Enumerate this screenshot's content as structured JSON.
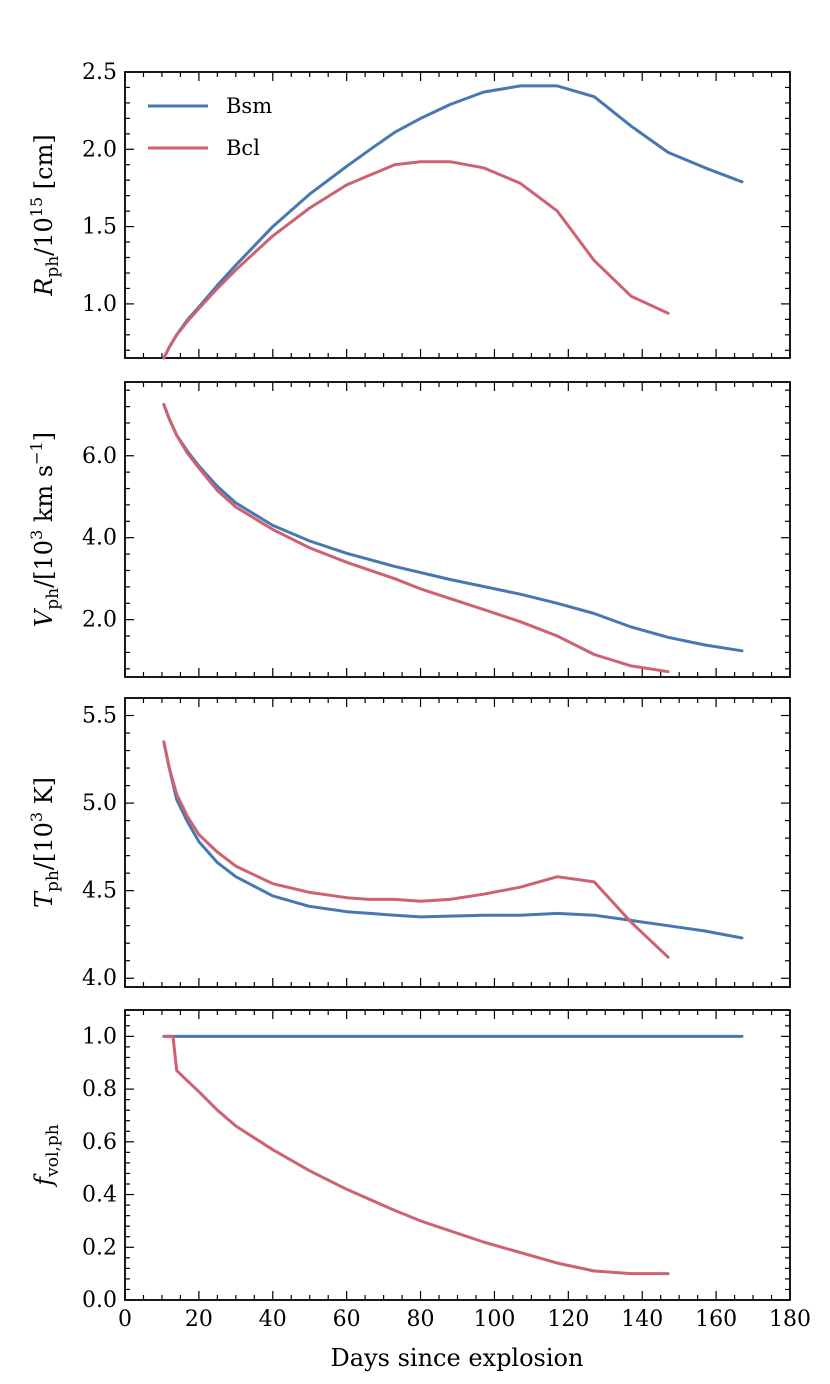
{
  "figure": {
    "xlabel": "Days since explosion",
    "xlim": [
      0,
      180
    ],
    "xticks": [
      0,
      20,
      40,
      60,
      80,
      100,
      120,
      140,
      160,
      180
    ],
    "xtick_labels": [
      "0",
      "20",
      "40",
      "60",
      "80",
      "100",
      "120",
      "140",
      "160",
      "180"
    ],
    "colors": {
      "Bsm": "#4878b0",
      "Bcl": "#cc6272"
    }
  },
  "legend": {
    "placement": "top-left",
    "entries": [
      {
        "name": "Bsm",
        "color": "#4878b0"
      },
      {
        "name": "Bcl",
        "color": "#cc6272"
      }
    ]
  },
  "chart_data": [
    {
      "type": "line",
      "id": "radius",
      "ylabel": {
        "sym": "R",
        "sub": "ph",
        "rest": "/10",
        "sup": "15",
        "unit": " [cm]"
      },
      "ylim": [
        0.65,
        2.5
      ],
      "yticks": [
        1.0,
        1.5,
        2.0,
        2.5
      ],
      "ytick_labels": [
        "1.0",
        "1.5",
        "2.0",
        "2.5"
      ],
      "series": [
        {
          "name": "Bsm",
          "x": [
            10.5,
            12,
            14,
            17,
            20,
            25,
            30,
            40,
            50,
            60,
            67,
            73,
            80,
            88,
            97,
            107,
            117,
            127,
            137,
            147,
            157,
            167
          ],
          "y": [
            0.65,
            0.72,
            0.8,
            0.9,
            0.98,
            1.12,
            1.25,
            1.5,
            1.71,
            1.89,
            2.01,
            2.11,
            2.2,
            2.29,
            2.37,
            2.41,
            2.41,
            2.34,
            2.15,
            1.98,
            1.88,
            1.79
          ]
        },
        {
          "name": "Bcl",
          "x": [
            10.5,
            12,
            14,
            17,
            20,
            25,
            30,
            40,
            50,
            60,
            67,
            73,
            80,
            88,
            97,
            107,
            117,
            127,
            137,
            147
          ],
          "y": [
            0.65,
            0.72,
            0.8,
            0.89,
            0.97,
            1.1,
            1.22,
            1.44,
            1.62,
            1.77,
            1.84,
            1.9,
            1.92,
            1.92,
            1.88,
            1.78,
            1.6,
            1.28,
            1.05,
            0.94
          ]
        }
      ]
    },
    {
      "type": "line",
      "id": "velocity",
      "ylabel": {
        "sym": "V",
        "sub": "ph",
        "rest": "/[10",
        "sup": "3",
        "unit": " km s",
        "sup2": "−1",
        "close": "]"
      },
      "ylim": [
        0.6,
        7.8
      ],
      "yticks": [
        2.0,
        4.0,
        6.0
      ],
      "ytick_labels": [
        "2.0",
        "4.0",
        "6.0"
      ],
      "series": [
        {
          "name": "Bsm",
          "x": [
            10.5,
            12,
            14,
            17,
            20,
            25,
            30,
            40,
            50,
            60,
            73,
            88,
            107,
            117,
            127,
            137,
            147,
            157,
            167
          ],
          "y": [
            7.25,
            6.9,
            6.5,
            6.1,
            5.75,
            5.25,
            4.85,
            4.3,
            3.92,
            3.62,
            3.3,
            2.98,
            2.62,
            2.4,
            2.15,
            1.82,
            1.57,
            1.38,
            1.24
          ]
        },
        {
          "name": "Bcl",
          "x": [
            10.5,
            12,
            14,
            17,
            20,
            25,
            30,
            40,
            50,
            60,
            73,
            80,
            97,
            107,
            117,
            127,
            137,
            147
          ],
          "y": [
            7.25,
            6.9,
            6.5,
            6.05,
            5.7,
            5.15,
            4.75,
            4.2,
            3.75,
            3.4,
            3.0,
            2.75,
            2.25,
            1.95,
            1.6,
            1.15,
            0.87,
            0.73
          ]
        }
      ]
    },
    {
      "type": "line",
      "id": "temperature",
      "ylabel": {
        "sym": "T",
        "sub": "ph",
        "rest": "/[10",
        "sup": "3",
        "unit": " K]"
      },
      "ylim": [
        3.95,
        5.6
      ],
      "yticks": [
        4.0,
        4.5,
        5.0,
        5.5
      ],
      "ytick_labels": [
        "4.0",
        "4.5",
        "5.0",
        "5.5"
      ],
      "series": [
        {
          "name": "Bsm",
          "x": [
            10.5,
            12,
            14,
            17,
            20,
            25,
            30,
            40,
            50,
            60,
            73,
            80,
            97,
            107,
            117,
            127,
            137,
            147,
            157,
            167
          ],
          "y": [
            5.35,
            5.2,
            5.02,
            4.89,
            4.78,
            4.66,
            4.58,
            4.47,
            4.41,
            4.38,
            4.36,
            4.35,
            4.36,
            4.36,
            4.37,
            4.36,
            4.33,
            4.3,
            4.27,
            4.23
          ]
        },
        {
          "name": "Bcl",
          "x": [
            10.5,
            12,
            14,
            17,
            20,
            25,
            30,
            40,
            50,
            60,
            66,
            73,
            80,
            88,
            97,
            107,
            117,
            127,
            137,
            147
          ],
          "y": [
            5.35,
            5.2,
            5.05,
            4.92,
            4.82,
            4.72,
            4.64,
            4.54,
            4.49,
            4.46,
            4.45,
            4.45,
            4.44,
            4.45,
            4.48,
            4.52,
            4.58,
            4.55,
            4.32,
            4.12
          ]
        }
      ]
    },
    {
      "type": "line",
      "id": "volume-filling",
      "ylabel": {
        "sym": "f",
        "sub": "vol,ph"
      },
      "ylim": [
        0.0,
        1.1
      ],
      "yticks": [
        0.0,
        0.2,
        0.4,
        0.6,
        0.8,
        1.0
      ],
      "ytick_labels": [
        "0.0",
        "0.2",
        "0.4",
        "0.6",
        "0.8",
        "1.0"
      ],
      "series": [
        {
          "name": "Bsm",
          "x": [
            10.5,
            167
          ],
          "y": [
            1.0,
            1.0
          ]
        },
        {
          "name": "Bcl",
          "x": [
            10.5,
            13,
            14,
            17,
            20,
            25,
            30,
            40,
            50,
            60,
            73,
            80,
            97,
            107,
            117,
            127,
            137,
            147
          ],
          "y": [
            1.0,
            1.0,
            0.87,
            0.83,
            0.79,
            0.72,
            0.66,
            0.57,
            0.49,
            0.42,
            0.34,
            0.3,
            0.22,
            0.18,
            0.14,
            0.11,
            0.1,
            0.1
          ]
        }
      ]
    }
  ]
}
